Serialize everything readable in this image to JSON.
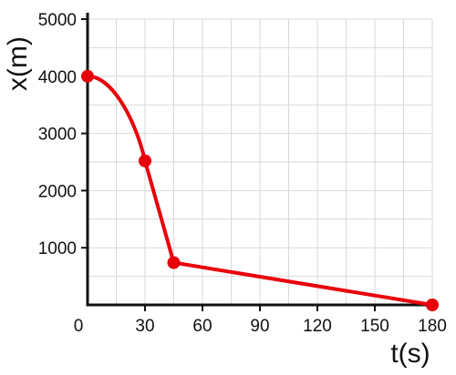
{
  "chart_data": {
    "type": "line",
    "title": "",
    "xlabel": "t(s)",
    "ylabel": "x(m)",
    "xlim": [
      0,
      180
    ],
    "ylim": [
      0,
      5000
    ],
    "grid": true,
    "x_ticks": [
      0,
      30,
      60,
      90,
      120,
      150,
      180
    ],
    "x_tick_labels": [
      "0",
      "30",
      "60",
      "90",
      "120",
      "150",
      "180"
    ],
    "y_ticks": [
      1000,
      2000,
      3000,
      4000,
      5000
    ],
    "y_tick_labels": [
      "1000",
      "2000",
      "3000",
      "4000",
      "5000"
    ],
    "series": [
      {
        "color": "#e8000b",
        "points": [
          {
            "x": 0,
            "y": 4000
          },
          {
            "x": 30,
            "y": 2520
          },
          {
            "x": 45,
            "y": 740
          },
          {
            "x": 180,
            "y": 0
          }
        ],
        "segments": [
          {
            "from": 0,
            "to": 1,
            "shape": "curve"
          },
          {
            "from": 1,
            "to": 2,
            "shape": "straight"
          },
          {
            "from": 2,
            "to": 3,
            "shape": "straight"
          }
        ]
      }
    ]
  }
}
